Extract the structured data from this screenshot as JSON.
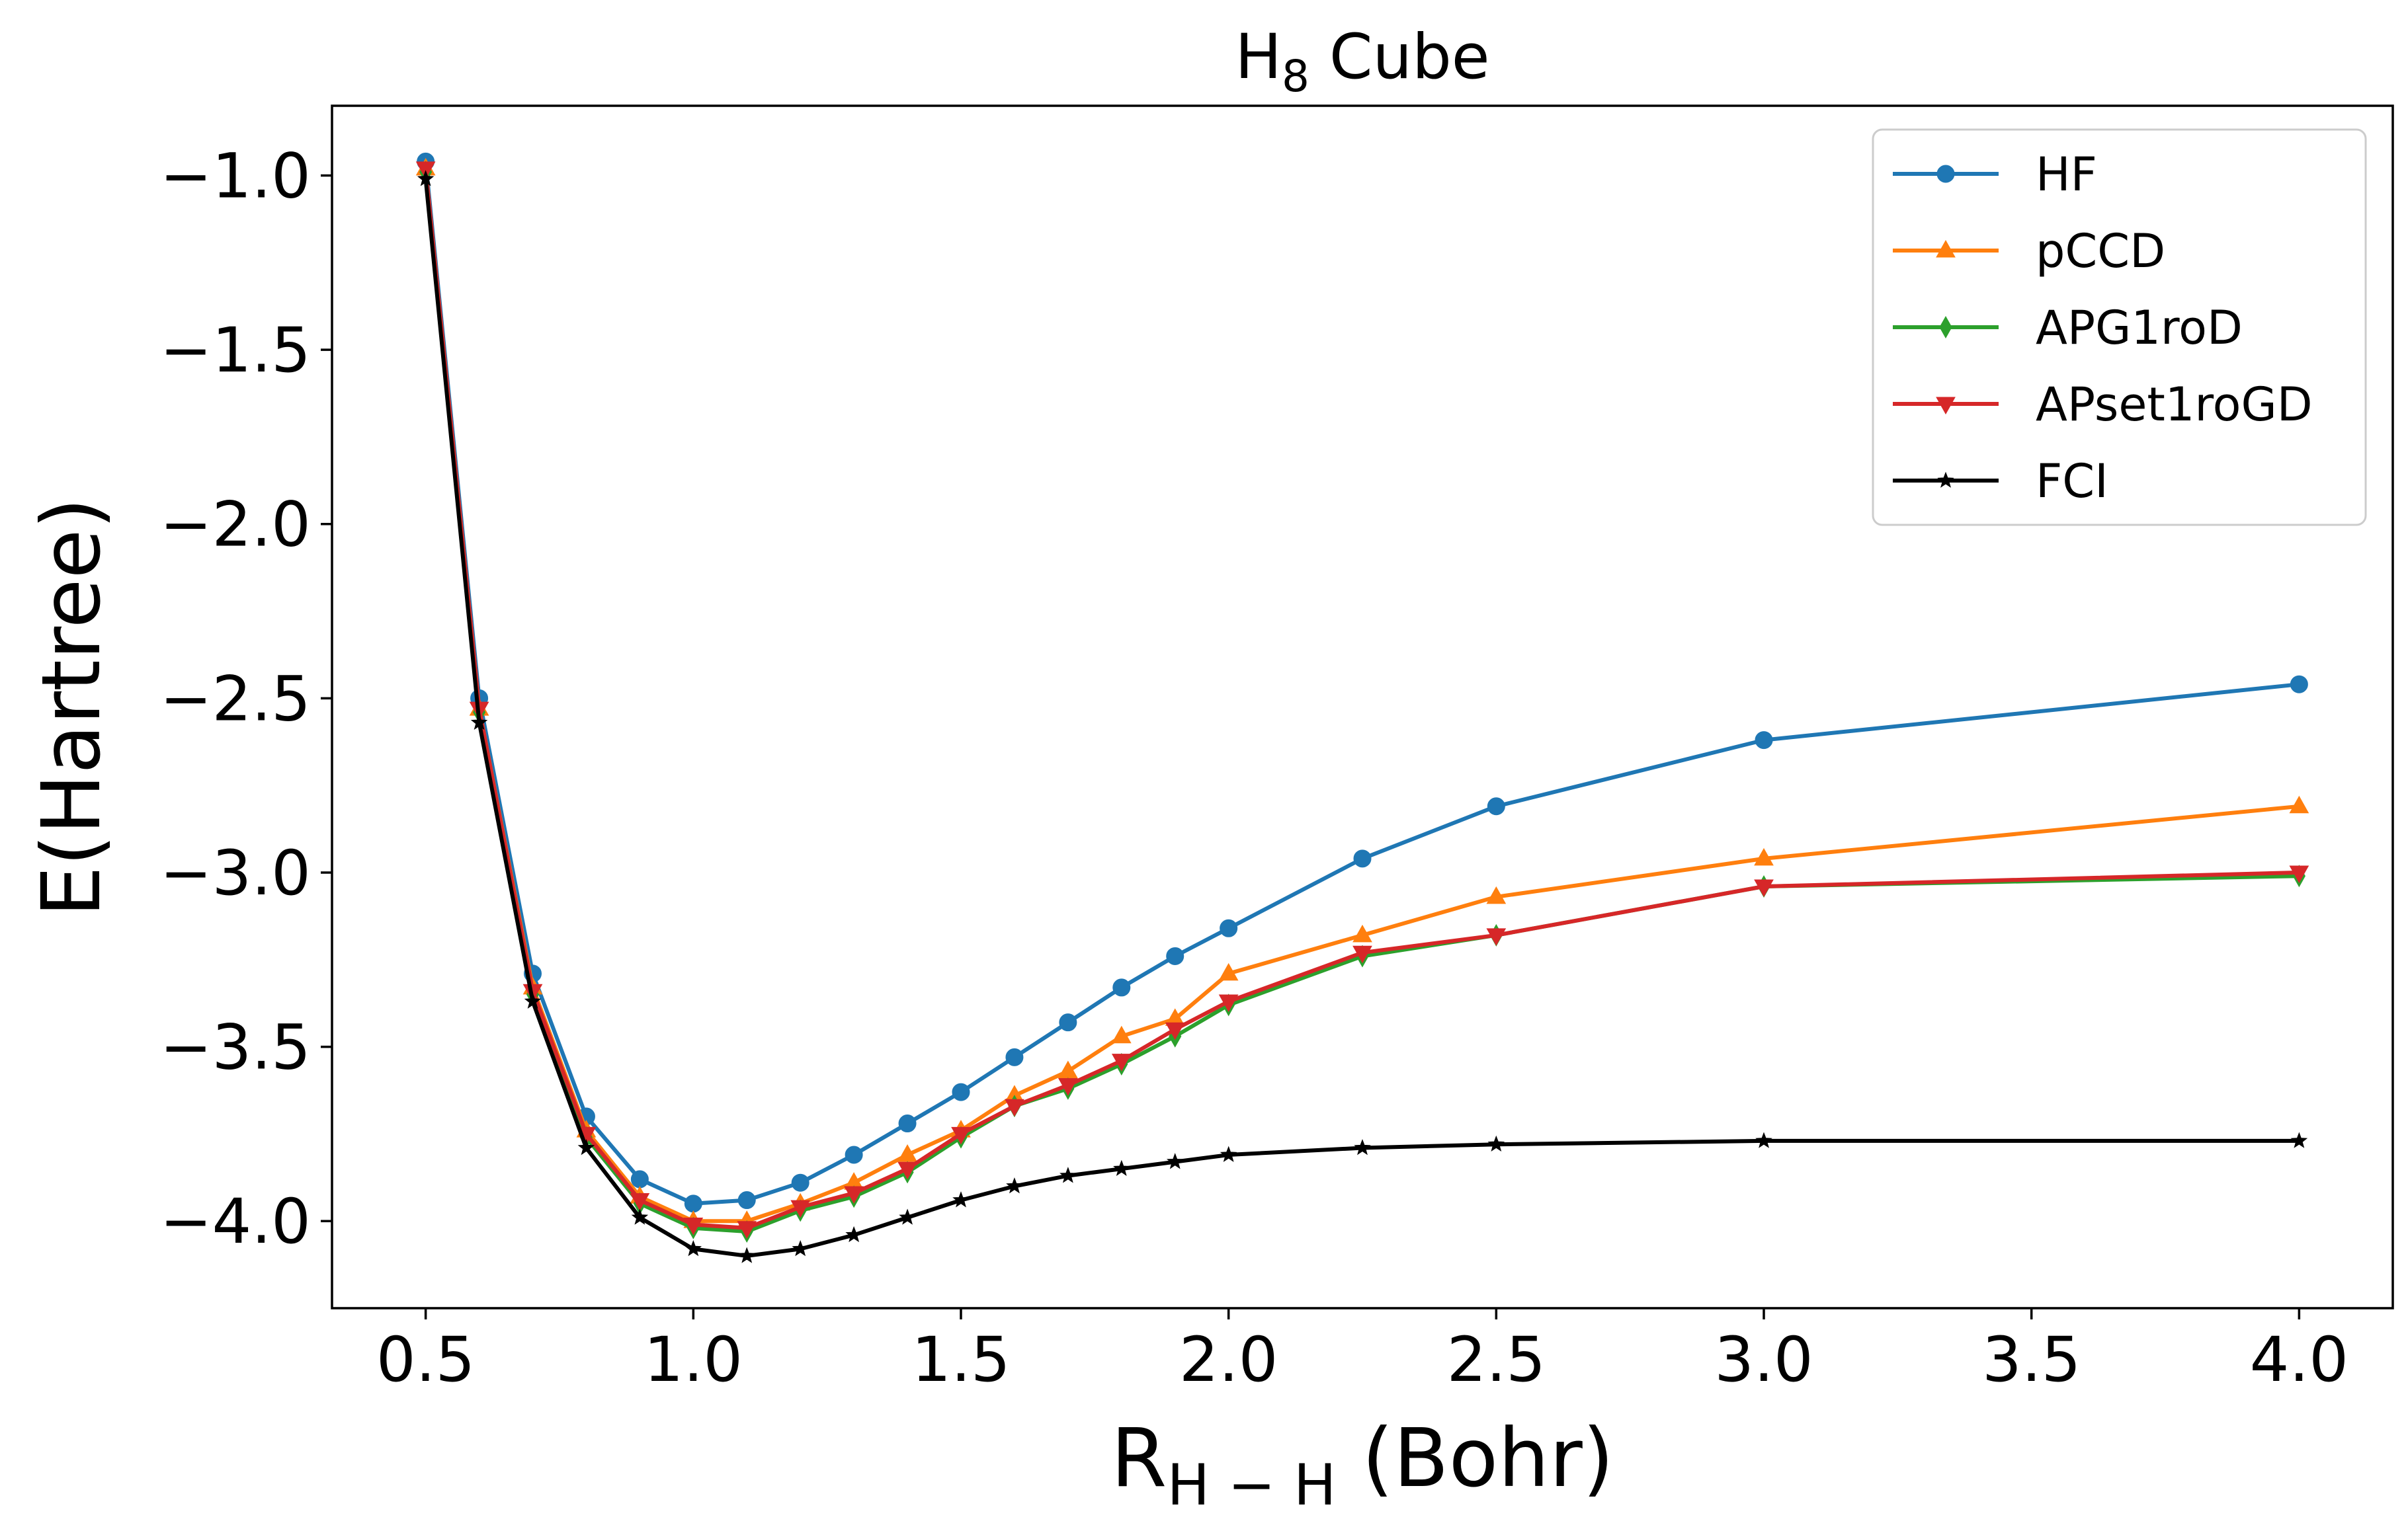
{
  "chart_data": {
    "type": "line",
    "title": {
      "main": "H",
      "sub": "8",
      "rest": " Cube"
    },
    "xlabel": {
      "main": "R",
      "sub": "H − H",
      "rest": " (Bohr)"
    },
    "ylabel": "E(Hartree)",
    "xlim": [
      0.325,
      4.175
    ],
    "ylim": [
      -4.25,
      -0.8
    ],
    "xticks": [
      0.5,
      1.0,
      1.5,
      2.0,
      2.5,
      3.0,
      3.5,
      4.0
    ],
    "xtick_labels": [
      "0.5",
      "1.0",
      "1.5",
      "2.0",
      "2.5",
      "3.0",
      "3.5",
      "4.0"
    ],
    "yticks": [
      -1.0,
      -1.5,
      -2.0,
      -2.5,
      -3.0,
      -3.5,
      -4.0
    ],
    "ytick_labels": [
      "−1.0",
      "−1.5",
      "−2.0",
      "−2.5",
      "−3.0",
      "−3.5",
      "−4.0"
    ],
    "grid": false,
    "legend_position": "top-right",
    "x": [
      0.5,
      0.6,
      0.7,
      0.8,
      0.9,
      1.0,
      1.1,
      1.2,
      1.3,
      1.4,
      1.5,
      1.6,
      1.7,
      1.8,
      1.9,
      2.0,
      2.25,
      2.5,
      3.0,
      4.0
    ],
    "series": [
      {
        "name": "HF",
        "color": "#1f77b4",
        "marker": "circle",
        "values": [
          -0.96,
          -2.5,
          -3.29,
          -3.7,
          -3.88,
          -3.95,
          -3.94,
          -3.89,
          -3.81,
          -3.72,
          -3.63,
          -3.53,
          -3.43,
          -3.33,
          -3.24,
          -3.16,
          -2.96,
          -2.81,
          -2.62,
          -2.46
        ]
      },
      {
        "name": "pCCD",
        "color": "#ff7f0e",
        "marker": "triangle-up",
        "values": [
          -0.98,
          -2.53,
          -3.33,
          -3.74,
          -3.93,
          -4.0,
          -4.0,
          -3.95,
          -3.89,
          -3.81,
          -3.74,
          -3.64,
          -3.57,
          -3.47,
          -3.42,
          -3.29,
          -3.18,
          -3.07,
          -2.96,
          -2.81
        ]
      },
      {
        "name": "APG1roD",
        "color": "#2ca02c",
        "marker": "diamond",
        "values": [
          -0.99,
          -2.54,
          -3.35,
          -3.76,
          -3.95,
          -4.02,
          -4.03,
          -3.97,
          -3.93,
          -3.86,
          -3.76,
          -3.67,
          -3.62,
          -3.55,
          -3.47,
          -3.38,
          -3.24,
          -3.18,
          -3.04,
          -3.01
        ]
      },
      {
        "name": "APset1roGD",
        "color": "#d62728",
        "marker": "triangle-down",
        "values": [
          -0.98,
          -2.53,
          -3.34,
          -3.75,
          -3.94,
          -4.01,
          -4.02,
          -3.96,
          -3.92,
          -3.85,
          -3.75,
          -3.67,
          -3.61,
          -3.54,
          -3.45,
          -3.37,
          -3.23,
          -3.18,
          -3.04,
          -3.0
        ]
      },
      {
        "name": "FCI",
        "color": "#000000",
        "marker": "star",
        "values": [
          -1.01,
          -2.57,
          -3.37,
          -3.79,
          -3.99,
          -4.08,
          -4.1,
          -4.08,
          -4.04,
          -3.99,
          -3.94,
          -3.9,
          -3.87,
          -3.85,
          -3.83,
          -3.81,
          -3.79,
          -3.78,
          -3.77,
          -3.77
        ]
      }
    ]
  }
}
